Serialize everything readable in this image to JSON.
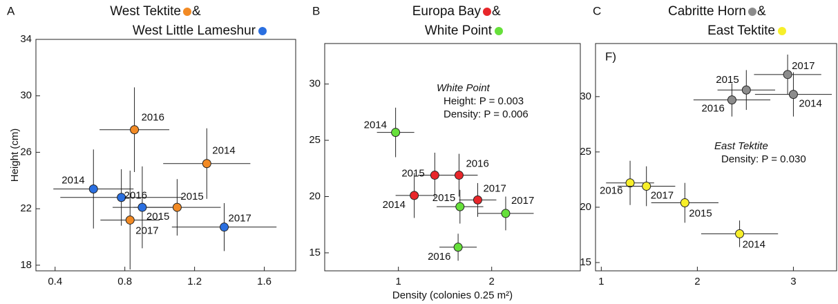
{
  "chart_data": [
    {
      "type": "scatter",
      "panel": "A",
      "conjunction": "&",
      "ylabel": "Height (cm)",
      "xlim": [
        0.29,
        1.78
      ],
      "xticks": [
        0.4,
        0.8,
        1.2,
        1.6
      ],
      "ylim": [
        17.6,
        34
      ],
      "yticks": [
        18,
        22,
        26,
        30,
        34
      ],
      "series": [
        {
          "name": "West Tektite",
          "color": "#f28a24",
          "labels": [
            "2016",
            "2014",
            "2015",
            "2017"
          ],
          "x": [
            0.855,
            1.27,
            1.1,
            0.83
          ],
          "values": [
            27.6,
            25.2,
            22.1,
            21.2
          ],
          "xerr": [
            0.2,
            0.25,
            0.25,
            0.17
          ],
          "yerr": [
            3,
            2.5,
            2,
            3.5
          ]
        },
        {
          "name": "West Little Lameshur",
          "color": "#2a6fe0",
          "labels": [
            "2014",
            "2016",
            "2015",
            "2017"
          ],
          "x": [
            0.62,
            0.78,
            0.9,
            1.37
          ],
          "values": [
            23.4,
            22.8,
            22.1,
            20.7
          ],
          "xerr": [
            0.23,
            0.35,
            0.17,
            0.3
          ],
          "yerr": [
            2.8,
            2,
            2.9,
            1.7
          ]
        }
      ]
    },
    {
      "type": "scatter",
      "panel": "B",
      "conjunction": "&",
      "xlabel": "Density (colonies 0.25 m²)",
      "xlim": [
        0.21,
        2.95
      ],
      "xticks": [
        1,
        2
      ],
      "ylim": [
        13.4,
        33.6
      ],
      "yticks": [
        15,
        20,
        25,
        30
      ],
      "annotation": [
        "White Point",
        "Height: P = 0.003",
        "Density: P = 0.006"
      ],
      "series": [
        {
          "name": "Europa Bay",
          "color": "#e8262a",
          "labels": [
            "2015",
            "2016",
            "2014",
            "2017"
          ],
          "x": [
            1.39,
            1.65,
            1.17,
            1.85
          ],
          "values": [
            21.9,
            21.9,
            20.1,
            19.7
          ],
          "xerr": [
            0.18,
            0.2,
            0.2,
            0.2
          ],
          "yerr": [
            2,
            1.9,
            2,
            1.5
          ]
        },
        {
          "name": "White Point",
          "color": "#66e03a",
          "labels": [
            "2014",
            "2015",
            "2017",
            "2016"
          ],
          "x": [
            0.97,
            1.66,
            2.15,
            1.64
          ],
          "values": [
            25.7,
            19.1,
            18.5,
            15.5
          ],
          "xerr": [
            0.2,
            0.25,
            0.3,
            0.2
          ],
          "yerr": [
            2.2,
            1.5,
            1.5,
            1.2
          ]
        }
      ]
    },
    {
      "type": "scatter",
      "panel": "C",
      "conjunction": "&",
      "label": "F)",
      "xlim": [
        0.94,
        3.45
      ],
      "xticks": [
        1,
        2,
        3
      ],
      "ylim": [
        14.25,
        34.8
      ],
      "yticks": [
        15,
        20,
        25,
        30
      ],
      "annotation": [
        "East Tektite",
        "Density: P = 0.030"
      ],
      "series": [
        {
          "name": "Cabritte Horn",
          "color": "#8c8c8c",
          "labels": [
            "2017",
            "2015",
            "2014",
            "2016"
          ],
          "x": [
            2.94,
            2.51,
            3.0,
            2.36
          ],
          "values": [
            32.0,
            30.6,
            30.2,
            29.7
          ],
          "xerr": [
            0.35,
            0.3,
            0.4,
            0.4
          ],
          "yerr": [
            1.8,
            1.8,
            2,
            1.5
          ]
        },
        {
          "name": "East Tektite",
          "color": "#f7ef2a",
          "labels": [
            "2016",
            "2017",
            "2015",
            "2014"
          ],
          "x": [
            1.3,
            1.47,
            1.87,
            2.44
          ],
          "values": [
            22.2,
            21.9,
            20.4,
            17.6
          ],
          "xerr": [
            0.25,
            0.3,
            0.35,
            0.4
          ],
          "yerr": [
            2,
            1.8,
            1.8,
            1.2
          ]
        }
      ]
    }
  ]
}
